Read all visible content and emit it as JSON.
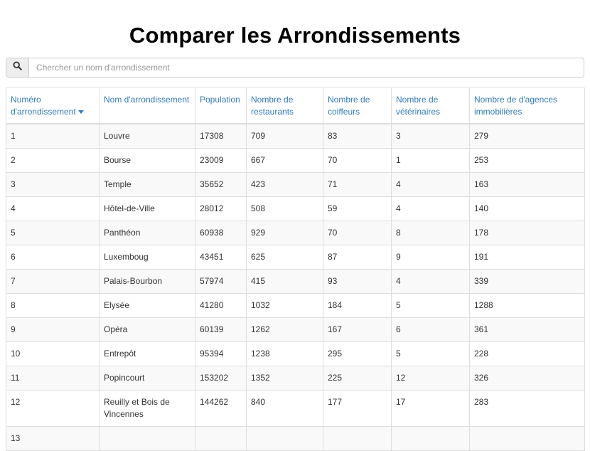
{
  "title": "Comparer les Arrondissements",
  "search": {
    "placeholder": "Chercher un nom d'arrondissement",
    "value": ""
  },
  "table": {
    "headers": [
      "Numéro d'arrondissement",
      "Nom d'arrondissement",
      "Population",
      "Nombre de restaurants",
      "Nombre de coiffeurs",
      "Nombre de vétérinaires",
      "Nombre de d'agences immobilières"
    ],
    "sorted_column": 0,
    "sort_direction": "descending-caret",
    "rows": [
      [
        "1",
        "Louvre",
        "17308",
        "709",
        "83",
        "3",
        "279"
      ],
      [
        "2",
        "Bourse",
        "23009",
        "667",
        "70",
        "1",
        "253"
      ],
      [
        "3",
        "Temple",
        "35652",
        "423",
        "71",
        "4",
        "163"
      ],
      [
        "4",
        "Hôtel-de-Ville",
        "28012",
        "508",
        "59",
        "4",
        "140"
      ],
      [
        "5",
        "Panthéon",
        "60938",
        "929",
        "70",
        "8",
        "178"
      ],
      [
        "6",
        "Luxemboug",
        "43451",
        "625",
        "87",
        "9",
        "191"
      ],
      [
        "7",
        "Palais-Bourbon",
        "57974",
        "415",
        "93",
        "4",
        "339"
      ],
      [
        "8",
        "Elysée",
        "41280",
        "1032",
        "184",
        "5",
        "1288"
      ],
      [
        "9",
        "Opéra",
        "60139",
        "1262",
        "167",
        "6",
        "361"
      ],
      [
        "10",
        "Entrepôt",
        "95394",
        "1238",
        "295",
        "5",
        "228"
      ],
      [
        "11",
        "Popincourt",
        "153202",
        "1352",
        "225",
        "12",
        "326"
      ],
      [
        "12",
        "Reuilly et Bois de Vincennes",
        "144262",
        "840",
        "177",
        "17",
        "283"
      ],
      [
        "13",
        "",
        "",
        "",
        "",
        "",
        ""
      ]
    ]
  },
  "icons": {
    "search": "search-icon",
    "sort": "caret-down-icon"
  },
  "colors": {
    "header_text": "#337ab7",
    "stripe": "#f9f9f9",
    "border": "#dddddd"
  }
}
